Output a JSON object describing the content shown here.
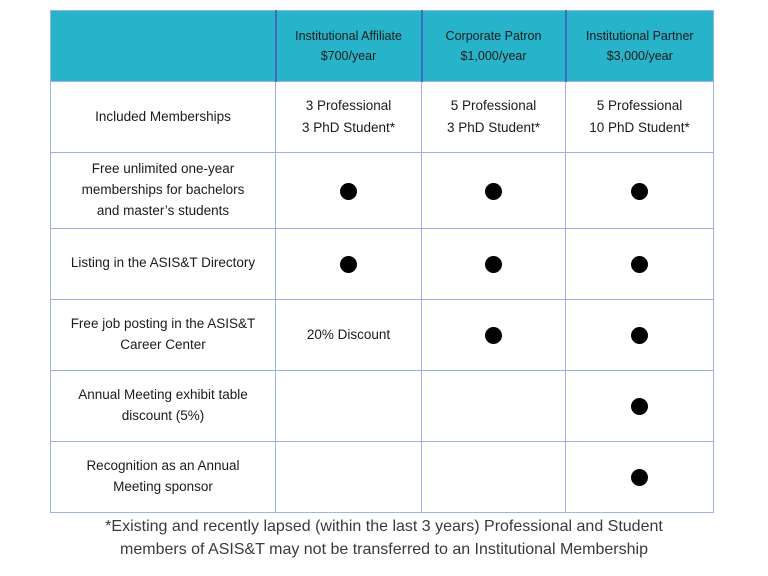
{
  "colors": {
    "header_bg": "#27b3ca",
    "grid": "#9db0e9",
    "header_divider": "#3c6dc5",
    "text": "#1b1b1b",
    "dot": "#000000"
  },
  "table": {
    "header": [
      {
        "name": "Institutional Affiliate",
        "price": "$700/year"
      },
      {
        "name": "Corporate Patron",
        "price": "$1,000/year"
      },
      {
        "name": "Institutional Partner",
        "price": "$3,000/year"
      }
    ],
    "rows": [
      {
        "label": "Included Memberships",
        "cells": [
          "3 Professional\n3 PhD Student*",
          "5 Professional\n3 PhD Student*",
          "5 Professional\n10 PhD Student*"
        ]
      },
      {
        "label": "Free unlimited one-year memberships for bachelors and master’s students",
        "cells": [
          "dot",
          "dot",
          "dot"
        ]
      },
      {
        "label": "Listing in the ASIS&T Directory",
        "cells": [
          "dot",
          "dot",
          "dot"
        ]
      },
      {
        "label": "Free job posting in the ASIS&T Career Center",
        "cells": [
          "20% Discount",
          "dot",
          "dot"
        ]
      },
      {
        "label": "Annual Meeting exhibit table discount (5%)",
        "cells": [
          "",
          "",
          "dot"
        ]
      },
      {
        "label": "Recognition as an Annual Meeting sponsor",
        "cells": [
          "",
          "",
          "dot"
        ]
      }
    ]
  },
  "footnote": "*Existing and recently lapsed (within the last 3 years) Professional and Student members of ASIS&T may not be transferred to an Institutional Membership"
}
